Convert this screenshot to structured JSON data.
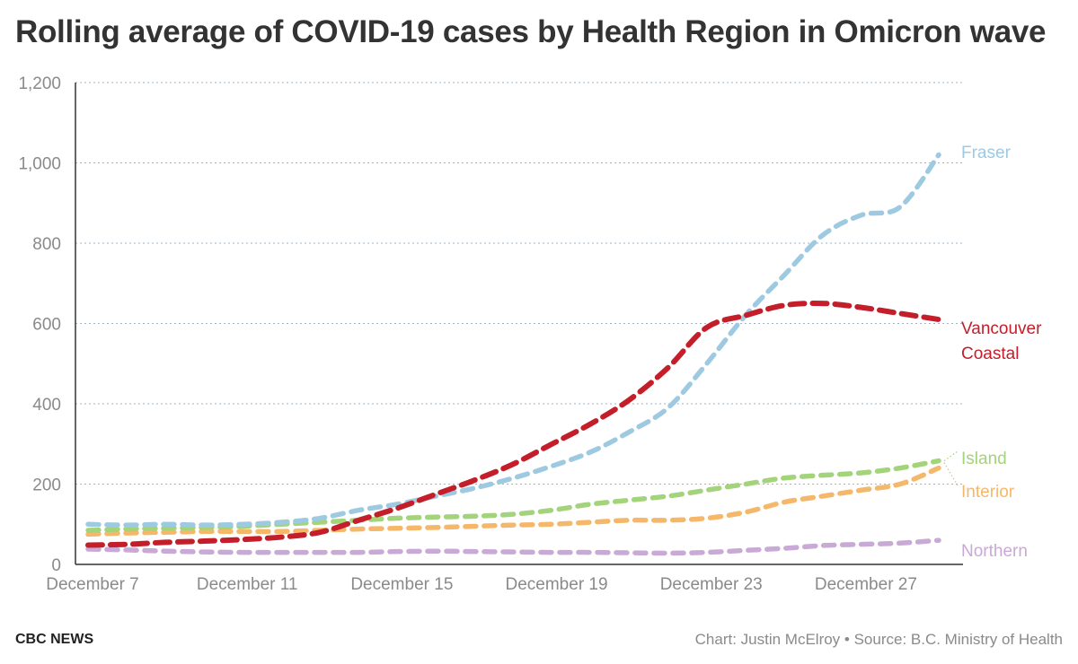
{
  "title": "Rolling average of COVID-19 cases by Health Region in Omicron wave",
  "footer": {
    "brand": "CBC NEWS",
    "credit": "Chart: Justin McElroy • Source: B.C. Ministry of Health"
  },
  "chart_data": {
    "type": "line",
    "title": "Rolling average of COVID-19 cases by Health Region in Omicron wave",
    "xlabel": "",
    "ylabel": "",
    "ylim": [
      0,
      1200
    ],
    "yticks": [
      0,
      200,
      400,
      600,
      800,
      1000,
      1200
    ],
    "ytick_labels": [
      "0",
      "200",
      "400",
      "600",
      "800",
      "1,000",
      "1,200"
    ],
    "x_start_day": 7,
    "x_end_day": 29,
    "xticks": [
      7,
      11,
      15,
      19,
      23,
      27
    ],
    "xtick_labels": [
      "December 7",
      "December 11",
      "December 15",
      "December 19",
      "December 23",
      "December 27"
    ],
    "grid": true,
    "line_style": "dashed",
    "x": [
      "Dec 7",
      "Dec 8",
      "Dec 9",
      "Dec 10",
      "Dec 11",
      "Dec 12",
      "Dec 13",
      "Dec 14",
      "Dec 15",
      "Dec 16",
      "Dec 17",
      "Dec 18",
      "Dec 19",
      "Dec 20",
      "Dec 21",
      "Dec 22",
      "Dec 23",
      "Dec 24",
      "Dec 25",
      "Dec 26",
      "Dec 27",
      "Dec 28",
      "Dec 29"
    ],
    "series": [
      {
        "name": "Fraser",
        "label_lines": [
          "Fraser"
        ],
        "color": "#9ecae1",
        "values": [
          100,
          98,
          100,
          98,
          100,
          105,
          115,
          135,
          150,
          170,
          190,
          215,
          245,
          280,
          330,
          390,
          500,
          620,
          720,
          820,
          870,
          890,
          1020
        ]
      },
      {
        "name": "Vancouver Coastal",
        "label_lines": [
          "Vancouver",
          "Coastal"
        ],
        "color": "#c41e2a",
        "values": [
          48,
          50,
          55,
          58,
          62,
          68,
          80,
          110,
          140,
          175,
          210,
          250,
          300,
          350,
          410,
          490,
          590,
          620,
          645,
          650,
          640,
          625,
          610
        ]
      },
      {
        "name": "Island",
        "label_lines": [
          "Island"
        ],
        "color": "#a3d37a",
        "values": [
          85,
          88,
          90,
          92,
          95,
          100,
          105,
          110,
          115,
          118,
          120,
          125,
          135,
          150,
          160,
          170,
          185,
          200,
          215,
          222,
          228,
          240,
          258
        ]
      },
      {
        "name": "Interior",
        "label_lines": [
          "Interior"
        ],
        "color": "#f5b76a",
        "values": [
          75,
          78,
          80,
          82,
          82,
          82,
          85,
          88,
          90,
          92,
          95,
          98,
          100,
          105,
          110,
          110,
          115,
          130,
          155,
          170,
          185,
          200,
          240
        ]
      },
      {
        "name": "Northern",
        "label_lines": [
          "Northern"
        ],
        "color": "#c9a9d5",
        "values": [
          38,
          36,
          33,
          31,
          30,
          30,
          30,
          30,
          32,
          33,
          32,
          31,
          30,
          30,
          29,
          28,
          30,
          35,
          40,
          47,
          50,
          53,
          60
        ]
      }
    ]
  }
}
